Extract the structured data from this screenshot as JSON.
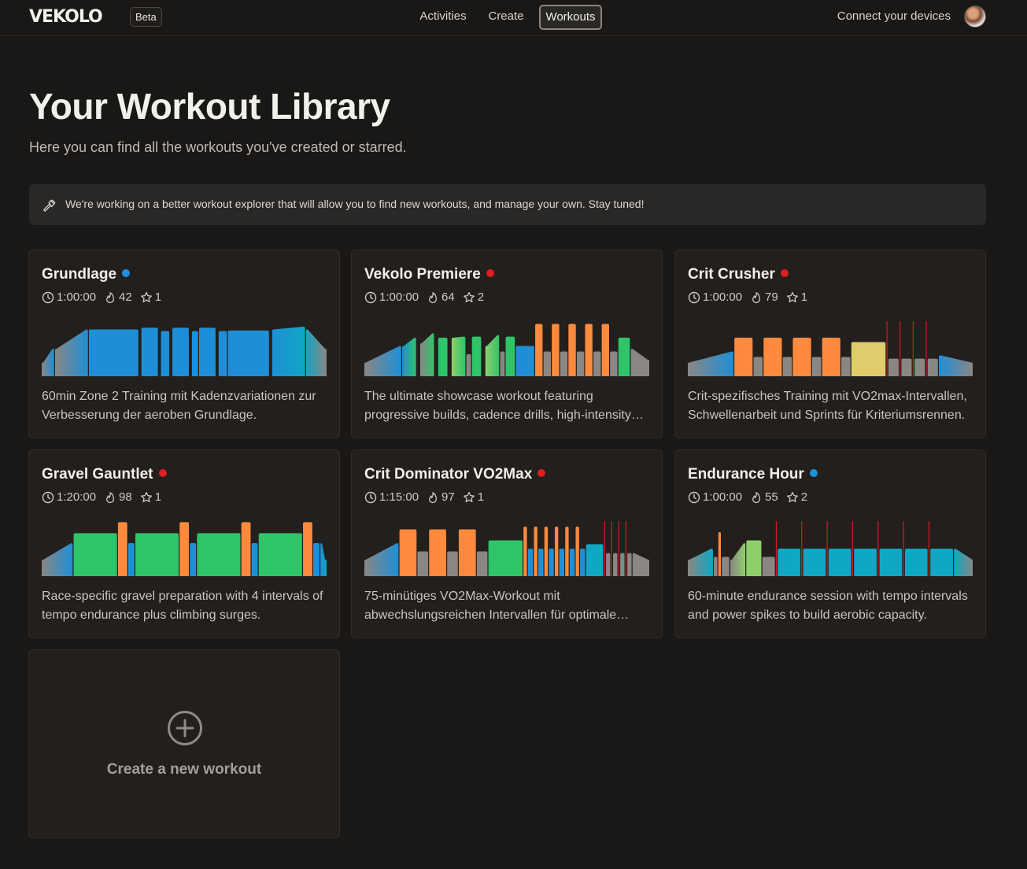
{
  "header": {
    "logo_text": "VEKOLO",
    "badge": "Beta",
    "nav": [
      {
        "label": "Activities",
        "active": false
      },
      {
        "label": "Create",
        "active": false
      },
      {
        "label": "Workouts",
        "active": true
      }
    ],
    "connect_label": "Connect your devices",
    "avatar_icon": "user-avatar"
  },
  "page": {
    "title": "Your Workout Library",
    "subtitle": "Here you can find all the workouts you've created or starred.",
    "notice": {
      "icon": "hammer-icon",
      "text": "We're working on a better workout explorer that will allow you to find new workouts, and manage your own. Stay tuned!"
    }
  },
  "colors": {
    "gray": "#8a8684",
    "blue": "#1e8fd6",
    "teal": "#0fa7c4",
    "green": "#2ec468",
    "lime": "#8fcf6a",
    "orange": "#ff8a3d",
    "yellow": "#e0cc6a",
    "red": "#d41e1e",
    "dot_blue": "#1e90e0",
    "dot_red": "#e01e1e"
  },
  "workouts": [
    {
      "title": "Grundlage",
      "dot": "blue",
      "duration": "1:00:00",
      "intensity": "42",
      "stars": "1",
      "description": "60min Zone 2 Training mit Kadenzvariationen zur Verbesserung der aeroben Grundlage.",
      "segments": [
        {
          "d": 3,
          "p": 0.25,
          "p2": 0.5,
          "c": "gray",
          "c2": "blue"
        },
        {
          "d": 8,
          "p": 0.5,
          "p2": 0.85,
          "c": "gray",
          "c2": "blue"
        },
        {
          "d": 12,
          "p": 0.85,
          "c": "blue"
        },
        {
          "d": 0.3,
          "p": 0,
          "c": "gray"
        },
        {
          "d": 4,
          "p": 0.88,
          "c": "blue"
        },
        {
          "d": 0.3,
          "p": 0,
          "c": "gray"
        },
        {
          "d": 2,
          "p": 0.82,
          "c": "blue"
        },
        {
          "d": 0.3,
          "p": 0,
          "c": "gray"
        },
        {
          "d": 4,
          "p": 0.88,
          "c": "blue"
        },
        {
          "d": 0.3,
          "p": 0,
          "c": "gray"
        },
        {
          "d": 1.5,
          "p": 0.82,
          "c": "blue"
        },
        {
          "d": 4,
          "p": 0.88,
          "c": "blue"
        },
        {
          "d": 0.3,
          "p": 0,
          "c": "gray"
        },
        {
          "d": 2,
          "p": 0.82,
          "c": "blue"
        },
        {
          "d": 10,
          "p": 0.83,
          "c": "blue"
        },
        {
          "d": 0.3,
          "p": 0,
          "c": "gray"
        },
        {
          "d": 8,
          "p": 0.85,
          "p2": 0.9,
          "c": "blue",
          "c2": "teal"
        },
        {
          "d": 5,
          "p": 0.85,
          "p2": 0.5,
          "c": "teal",
          "c2": "gray"
        }
      ]
    },
    {
      "title": "Vekolo Premiere",
      "dot": "red",
      "duration": "1:00:00",
      "intensity": "64",
      "stars": "2",
      "description": "The ultimate showcase workout featuring progressive builds, cadence drills, high-intensity intervals and sprints.",
      "segments": [
        {
          "d": 8,
          "p": 0.25,
          "p2": 0.55,
          "c": "gray",
          "c2": "blue"
        },
        {
          "d": 3,
          "p": 0.55,
          "p2": 0.7,
          "c": "blue",
          "c2": "green"
        },
        {
          "d": 0.5,
          "p": 0,
          "c": "gray"
        },
        {
          "d": 3,
          "p": 0.6,
          "p2": 0.78,
          "c": "gray",
          "c2": "green"
        },
        {
          "d": 0.5,
          "p": 0,
          "c": "gray"
        },
        {
          "d": 2,
          "p": 0.7,
          "c": "green"
        },
        {
          "d": 0.5,
          "p": 0,
          "c": "gray"
        },
        {
          "d": 3,
          "p": 0.7,
          "p2": 0.72,
          "c": "lime",
          "c2": "green"
        },
        {
          "d": 1,
          "p": 0.4,
          "c": "gray"
        },
        {
          "d": 2,
          "p": 0.72,
          "c": "green"
        },
        {
          "d": 0.5,
          "p": 0,
          "c": "gray"
        },
        {
          "d": 3,
          "p": 0.55,
          "p2": 0.75,
          "c": "lime",
          "c2": "green"
        },
        {
          "d": 1,
          "p": 0.45,
          "c": "gray"
        },
        {
          "d": 2,
          "p": 0.72,
          "c": "green"
        },
        {
          "d": 4,
          "p": 0.55,
          "c": "blue"
        },
        {
          "d": 1.6,
          "p": 0.95,
          "c": "orange"
        },
        {
          "d": 1.6,
          "p": 0.45,
          "c": "gray"
        },
        {
          "d": 1.6,
          "p": 0.95,
          "c": "orange"
        },
        {
          "d": 1.6,
          "p": 0.45,
          "c": "gray"
        },
        {
          "d": 1.6,
          "p": 0.95,
          "c": "orange"
        },
        {
          "d": 1.6,
          "p": 0.45,
          "c": "gray"
        },
        {
          "d": 1.6,
          "p": 0.95,
          "c": "orange"
        },
        {
          "d": 1.6,
          "p": 0.45,
          "c": "gray"
        },
        {
          "d": 1.6,
          "p": 0.95,
          "c": "orange"
        },
        {
          "d": 1.6,
          "p": 0.45,
          "c": "gray"
        },
        {
          "d": 2.5,
          "p": 0.7,
          "c": "green"
        },
        {
          "d": 4,
          "p": 0.5,
          "p2": 0.3,
          "c": "gray"
        }
      ]
    },
    {
      "title": "Crit Crusher",
      "dot": "red",
      "duration": "1:00:00",
      "intensity": "79",
      "stars": "1",
      "description": "Crit-spezifisches Training mit VO2max-Intervallen, Schwellenarbeit und Sprints für Kriteriumsrennen.",
      "segments": [
        {
          "d": 8,
          "p": 0.25,
          "p2": 0.45,
          "c": "gray",
          "c2": "blue"
        },
        {
          "d": 3.2,
          "p": 0.7,
          "c": "orange"
        },
        {
          "d": 1.6,
          "p": 0.35,
          "c": "gray"
        },
        {
          "d": 3.2,
          "p": 0.7,
          "c": "orange"
        },
        {
          "d": 1.6,
          "p": 0.35,
          "c": "gray"
        },
        {
          "d": 3.2,
          "p": 0.7,
          "c": "orange"
        },
        {
          "d": 1.6,
          "p": 0.35,
          "c": "gray"
        },
        {
          "d": 3.2,
          "p": 0.7,
          "c": "orange"
        },
        {
          "d": 1.6,
          "p": 0.35,
          "c": "gray"
        },
        {
          "d": 6,
          "p": 0.62,
          "c": "yellow"
        },
        {
          "d": 0.15,
          "p": 1,
          "c": "red"
        },
        {
          "d": 1.8,
          "p": 0.32,
          "c": "gray"
        },
        {
          "d": 0.15,
          "p": 1,
          "c": "red"
        },
        {
          "d": 1.8,
          "p": 0.32,
          "c": "gray"
        },
        {
          "d": 0.15,
          "p": 1,
          "c": "red"
        },
        {
          "d": 1.8,
          "p": 0.32,
          "c": "gray"
        },
        {
          "d": 0.15,
          "p": 1,
          "c": "red"
        },
        {
          "d": 1.8,
          "p": 0.32,
          "c": "gray"
        },
        {
          "d": 6,
          "p": 0.38,
          "p2": 0.25,
          "c": "blue",
          "c2": "gray"
        }
      ]
    },
    {
      "title": "Gravel Gauntlet",
      "dot": "red",
      "duration": "1:20:00",
      "intensity": "98",
      "stars": "1",
      "description": "Race-specific gravel preparation with 4 intervals of tempo endurance plus climbing surges.",
      "segments": [
        {
          "d": 10,
          "p": 0.3,
          "p2": 0.6,
          "c": "gray",
          "c2": "blue"
        },
        {
          "d": 14,
          "p": 0.78,
          "c": "green"
        },
        {
          "d": 3,
          "p": 0.98,
          "c": "orange"
        },
        {
          "d": 2,
          "p": 0.6,
          "c": "blue"
        },
        {
          "d": 14,
          "p": 0.78,
          "c": "green"
        },
        {
          "d": 3,
          "p": 0.98,
          "c": "orange"
        },
        {
          "d": 2,
          "p": 0.6,
          "c": "blue"
        },
        {
          "d": 14,
          "p": 0.78,
          "c": "green"
        },
        {
          "d": 3,
          "p": 0.98,
          "c": "orange"
        },
        {
          "d": 2,
          "p": 0.6,
          "c": "blue"
        },
        {
          "d": 14,
          "p": 0.78,
          "c": "green"
        },
        {
          "d": 3,
          "p": 0.98,
          "c": "orange"
        },
        {
          "d": 2,
          "p": 0.6,
          "c": "blue"
        },
        {
          "d": 2,
          "p": 0.6,
          "p2": 0.3,
          "c": "blue",
          "c2": "teal"
        }
      ]
    },
    {
      "title": "Crit Dominator VO2Max",
      "dot": "red",
      "duration": "1:15:00",
      "intensity": "97",
      "stars": "1",
      "description": "75-minütiges VO2Max-Workout mit abwechslungsreichen Intervallen für optimale Leistungssteigerung.",
      "segments": [
        {
          "d": 8,
          "p": 0.3,
          "p2": 0.6,
          "c": "gray",
          "c2": "blue"
        },
        {
          "d": 4,
          "p": 0.85,
          "c": "orange"
        },
        {
          "d": 2.5,
          "p": 0.45,
          "c": "gray"
        },
        {
          "d": 4,
          "p": 0.85,
          "c": "orange"
        },
        {
          "d": 2.5,
          "p": 0.45,
          "c": "gray"
        },
        {
          "d": 4,
          "p": 0.85,
          "c": "orange"
        },
        {
          "d": 2.5,
          "p": 0.45,
          "c": "gray"
        },
        {
          "d": 8,
          "p": 0.65,
          "c": "green"
        },
        {
          "d": 0.8,
          "p": 0.9,
          "c": "orange"
        },
        {
          "d": 1.2,
          "p": 0.5,
          "c": "blue"
        },
        {
          "d": 0.8,
          "p": 0.9,
          "c": "orange"
        },
        {
          "d": 1.2,
          "p": 0.5,
          "c": "blue"
        },
        {
          "d": 0.8,
          "p": 0.9,
          "c": "orange"
        },
        {
          "d": 1.2,
          "p": 0.5,
          "c": "blue"
        },
        {
          "d": 0.8,
          "p": 0.9,
          "c": "orange"
        },
        {
          "d": 1.2,
          "p": 0.5,
          "c": "blue"
        },
        {
          "d": 0.8,
          "p": 0.9,
          "c": "orange"
        },
        {
          "d": 1.2,
          "p": 0.5,
          "c": "blue"
        },
        {
          "d": 0.8,
          "p": 0.9,
          "c": "orange"
        },
        {
          "d": 1.2,
          "p": 0.5,
          "c": "blue"
        },
        {
          "d": 4,
          "p": 0.58,
          "c": "teal"
        },
        {
          "d": 0.2,
          "p": 1,
          "c": "red"
        },
        {
          "d": 1,
          "p": 0.42,
          "c": "gray"
        },
        {
          "d": 0.2,
          "p": 1,
          "c": "red"
        },
        {
          "d": 1,
          "p": 0.42,
          "c": "gray"
        },
        {
          "d": 0.2,
          "p": 1,
          "c": "red"
        },
        {
          "d": 1,
          "p": 0.42,
          "c": "gray"
        },
        {
          "d": 0.2,
          "p": 1,
          "c": "red"
        },
        {
          "d": 1,
          "p": 0.42,
          "c": "gray"
        },
        {
          "d": 4,
          "p": 0.42,
          "p2": 0.3,
          "c": "gray"
        }
      ]
    },
    {
      "title": "Endurance Hour",
      "dot": "blue",
      "duration": "1:00:00",
      "intensity": "55",
      "stars": "2",
      "description": "60-minute endurance session with tempo intervals and power spikes to build aerobic capacity.",
      "segments": [
        {
          "d": 5,
          "p": 0.3,
          "p2": 0.5,
          "c": "gray",
          "c2": "teal"
        },
        {
          "d": 0.7,
          "p": 0.35,
          "c": "gray"
        },
        {
          "d": 0.5,
          "p": 0.8,
          "c": "orange"
        },
        {
          "d": 1.5,
          "p": 0.35,
          "c": "gray"
        },
        {
          "d": 3,
          "p": 0.3,
          "p2": 0.6,
          "c": "gray",
          "c2": "lime"
        },
        {
          "d": 3,
          "p": 0.65,
          "c": "lime"
        },
        {
          "d": 2.5,
          "p": 0.35,
          "c": "gray"
        },
        {
          "d": 0.15,
          "p": 1,
          "c": "red"
        },
        {
          "d": 4.5,
          "p": 0.5,
          "c": "teal"
        },
        {
          "d": 0.15,
          "p": 1,
          "c": "red"
        },
        {
          "d": 4.5,
          "p": 0.5,
          "c": "teal"
        },
        {
          "d": 0.15,
          "p": 1,
          "c": "red"
        },
        {
          "d": 4.5,
          "p": 0.5,
          "c": "teal"
        },
        {
          "d": 0.15,
          "p": 1,
          "c": "red"
        },
        {
          "d": 4.5,
          "p": 0.5,
          "c": "teal"
        },
        {
          "d": 0.15,
          "p": 1,
          "c": "red"
        },
        {
          "d": 4.5,
          "p": 0.5,
          "c": "teal"
        },
        {
          "d": 0.15,
          "p": 1,
          "c": "red"
        },
        {
          "d": 4.5,
          "p": 0.5,
          "c": "teal"
        },
        {
          "d": 0.15,
          "p": 1,
          "c": "red"
        },
        {
          "d": 4.5,
          "p": 0.5,
          "c": "teal"
        },
        {
          "d": 4,
          "p": 0.5,
          "p2": 0.3,
          "c": "teal",
          "c2": "gray"
        }
      ]
    }
  ],
  "create_card": {
    "icon": "plus-circle-icon",
    "label": "Create a new workout"
  }
}
